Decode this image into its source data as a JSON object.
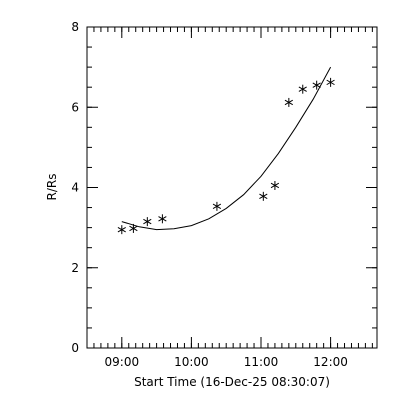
{
  "chart_data": {
    "type": "scatter",
    "title": "",
    "xlabel": "Start Time (16-Dec-25 08:30:07)",
    "ylabel": "R/Rs",
    "xlim": [
      "08:30",
      "12:40"
    ],
    "ylim": [
      0,
      8
    ],
    "x_ticks": [
      "09:00",
      "10:00",
      "11:00",
      "12:00"
    ],
    "y_ticks": [
      0,
      2,
      4,
      6,
      8
    ],
    "x_minor_step_minutes": 6,
    "y_minor_step": 0.5,
    "grid": false,
    "colors": {
      "axes": "#000000",
      "marks": "#000000",
      "background": "#ffffff"
    },
    "series": [
      {
        "marker": "asterisk",
        "x": [
          "09:00",
          "09:10",
          "09:22",
          "09:35",
          "10:22",
          "11:02",
          "11:12",
          "11:24",
          "11:36",
          "11:48",
          "12:00"
        ],
        "y": [
          2.95,
          2.98,
          3.15,
          3.22,
          3.53,
          3.78,
          4.05,
          6.12,
          6.45,
          6.55,
          6.62
        ]
      },
      {
        "style": "line",
        "x": [
          "09:00",
          "09:15",
          "09:30",
          "09:45",
          "10:00",
          "10:15",
          "10:30",
          "10:45",
          "11:00",
          "11:15",
          "11:30",
          "11:45",
          "12:00"
        ],
        "y": [
          3.15,
          3.02,
          2.95,
          2.97,
          3.05,
          3.22,
          3.48,
          3.82,
          4.28,
          4.85,
          5.5,
          6.2,
          7.0
        ]
      }
    ]
  }
}
